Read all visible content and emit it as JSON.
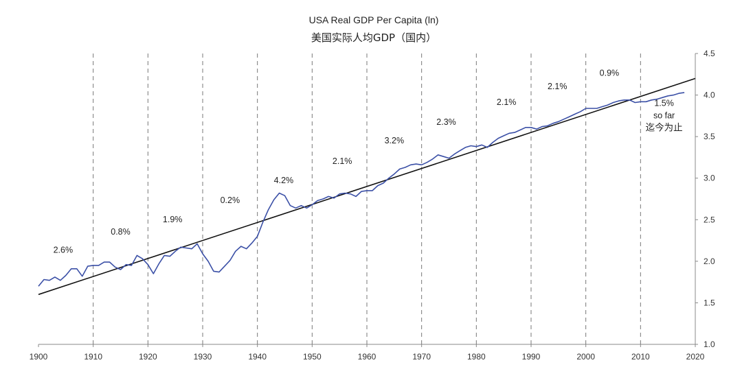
{
  "chart_data": {
    "type": "line",
    "title": "USA Real GDP Per Capita (ln)",
    "subtitle": "美国实际人均GDP（国内）",
    "x_ticks": [
      "1900",
      "1910",
      "1920",
      "1930",
      "1940",
      "1950",
      "1960",
      "1970",
      "1980",
      "1990",
      "2000",
      "2010",
      "2020"
    ],
    "y_ticks": [
      "1.0",
      "1.5",
      "2.0",
      "2.5",
      "3.0",
      "3.5",
      "4.0",
      "4.5"
    ],
    "xlim": [
      1900,
      2020
    ],
    "ylim": [
      1.0,
      4.5
    ],
    "decade_dividers": [
      1910,
      1920,
      1930,
      1940,
      1950,
      1960,
      1970,
      1980,
      1990,
      2000,
      2010
    ],
    "trend_line": {
      "x": [
        1900,
        2020
      ],
      "y": [
        1.6,
        4.2
      ]
    },
    "series": [
      {
        "name": "ln real GDP per capita",
        "x": [
          1900,
          1901,
          1902,
          1903,
          1904,
          1905,
          1906,
          1907,
          1908,
          1909,
          1910,
          1911,
          1912,
          1913,
          1914,
          1915,
          1916,
          1917,
          1918,
          1919,
          1920,
          1921,
          1922,
          1923,
          1924,
          1925,
          1926,
          1927,
          1928,
          1929,
          1930,
          1931,
          1932,
          1933,
          1934,
          1935,
          1936,
          1937,
          1938,
          1939,
          1940,
          1941,
          1942,
          1943,
          1944,
          1945,
          1946,
          1947,
          1948,
          1949,
          1950,
          1951,
          1952,
          1953,
          1954,
          1955,
          1956,
          1957,
          1958,
          1959,
          1960,
          1961,
          1962,
          1963,
          1964,
          1965,
          1966,
          1967,
          1968,
          1969,
          1970,
          1971,
          1972,
          1973,
          1974,
          1975,
          1976,
          1977,
          1978,
          1979,
          1980,
          1981,
          1982,
          1983,
          1984,
          1985,
          1986,
          1987,
          1988,
          1989,
          1990,
          1991,
          1992,
          1993,
          1994,
          1995,
          1996,
          1997,
          1998,
          1999,
          2000,
          2001,
          2002,
          2003,
          2004,
          2005,
          2006,
          2007,
          2008,
          2009,
          2010,
          2011,
          2012,
          2013,
          2014,
          2015,
          2016,
          2017,
          2018
        ],
        "y": [
          1.7,
          1.78,
          1.77,
          1.81,
          1.77,
          1.83,
          1.91,
          1.91,
          1.82,
          1.94,
          1.95,
          1.95,
          1.99,
          1.99,
          1.93,
          1.9,
          1.96,
          1.95,
          2.07,
          2.03,
          1.96,
          1.85,
          1.97,
          2.07,
          2.06,
          2.12,
          2.17,
          2.16,
          2.15,
          2.21,
          2.09,
          2.0,
          1.88,
          1.87,
          1.94,
          2.01,
          2.12,
          2.18,
          2.15,
          2.22,
          2.3,
          2.47,
          2.62,
          2.74,
          2.82,
          2.79,
          2.67,
          2.64,
          2.67,
          2.64,
          2.68,
          2.73,
          2.75,
          2.78,
          2.76,
          2.81,
          2.82,
          2.81,
          2.78,
          2.84,
          2.85,
          2.85,
          2.91,
          2.94,
          3.0,
          3.05,
          3.11,
          3.13,
          3.16,
          3.17,
          3.16,
          3.19,
          3.23,
          3.28,
          3.26,
          3.24,
          3.29,
          3.33,
          3.37,
          3.39,
          3.38,
          3.4,
          3.37,
          3.43,
          3.48,
          3.51,
          3.54,
          3.55,
          3.58,
          3.61,
          3.61,
          3.59,
          3.62,
          3.63,
          3.66,
          3.68,
          3.71,
          3.74,
          3.77,
          3.8,
          3.84,
          3.84,
          3.84,
          3.86,
          3.88,
          3.91,
          3.93,
          3.94,
          3.94,
          3.91,
          3.92,
          3.92,
          3.94,
          3.95,
          3.97,
          3.99,
          4.0,
          4.02,
          4.03
        ]
      }
    ],
    "annotations": [
      {
        "label": "2.6%",
        "x": 1904.5,
        "y": 2.1
      },
      {
        "label": "0.8%",
        "x": 1915,
        "y": 2.32
      },
      {
        "label": "1.9%",
        "x": 1924.5,
        "y": 2.47
      },
      {
        "label": "0.2%",
        "x": 1935,
        "y": 2.7
      },
      {
        "label": "4.2%",
        "x": 1944.8,
        "y": 2.94
      },
      {
        "label": "2.1%",
        "x": 1955.5,
        "y": 3.17
      },
      {
        "label": "3.2%",
        "x": 1965,
        "y": 3.42
      },
      {
        "label": "2.3%",
        "x": 1974.5,
        "y": 3.64
      },
      {
        "label": "2.1%",
        "x": 1985.5,
        "y": 3.88
      },
      {
        "label": "2.1%",
        "x": 1994.8,
        "y": 4.07
      },
      {
        "label": "0.9%",
        "x": 2004.3,
        "y": 4.23
      },
      {
        "label": "1.5%",
        "x": 2014.3,
        "y": 3.87
      },
      {
        "label": "so far",
        "x": 2014.3,
        "y": 3.72
      }
    ],
    "annotation_cn": {
      "label": "迄今为止",
      "x": 2014.3,
      "y": 3.57
    }
  }
}
